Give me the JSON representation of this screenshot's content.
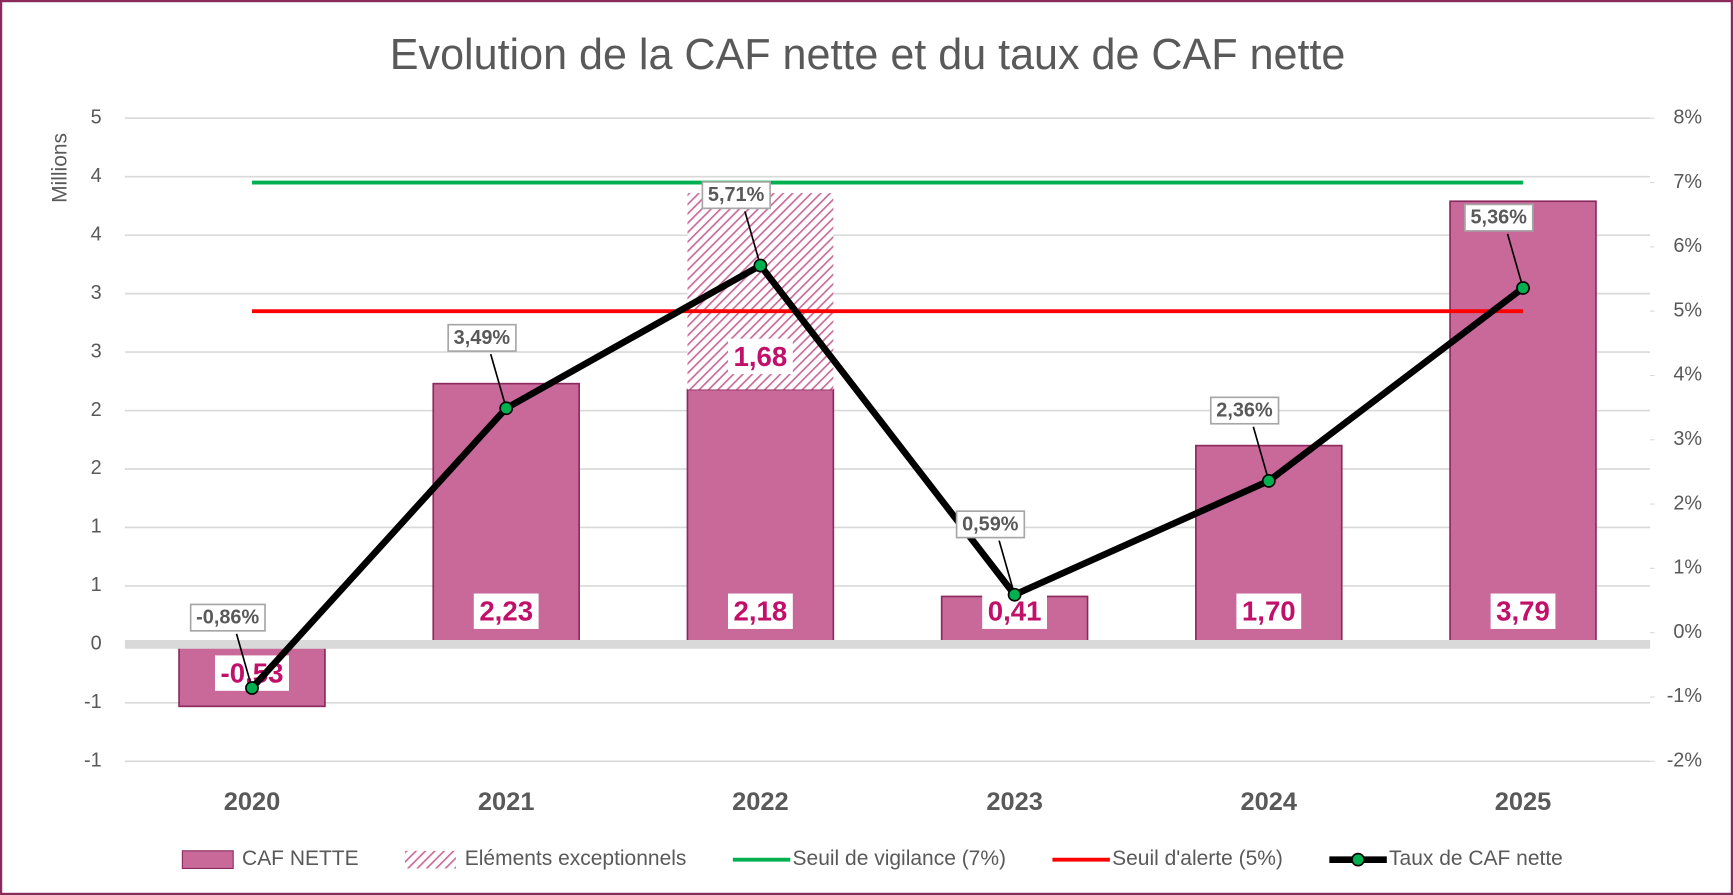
{
  "chart_data": {
    "type": "combo",
    "title": "Evolution de la CAF nette et du taux de CAF nette",
    "y_label": "Millions",
    "categories": [
      "2020",
      "2021",
      "2022",
      "2023",
      "2024",
      "2025"
    ],
    "ylim": [
      -1,
      4.5
    ],
    "yticks": [
      {
        "value": -1,
        "label": "-1"
      },
      {
        "value": -0.5,
        "label": "-1"
      },
      0,
      {
        "value": 0.5,
        "label": "1"
      },
      1,
      {
        "value": 1.5,
        "label": "2"
      },
      2,
      {
        "value": 2.5,
        "label": "3"
      },
      3,
      {
        "value": 3.5,
        "label": "4"
      },
      4,
      {
        "value": 4.5,
        "label": "5"
      }
    ],
    "y2lim": [
      -2,
      8
    ],
    "y2ticks": [
      {
        "value": -2,
        "label": "-2%"
      },
      {
        "value": -1,
        "label": "-1%"
      },
      {
        "value": 0,
        "label": "0%"
      },
      {
        "value": 1,
        "label": "1%"
      },
      {
        "value": 2,
        "label": "2%"
      },
      {
        "value": 3,
        "label": "3%"
      },
      {
        "value": 4,
        "label": "4%"
      },
      {
        "value": 5,
        "label": "5%"
      },
      {
        "value": 6,
        "label": "6%"
      },
      {
        "value": 7,
        "label": "7%"
      },
      {
        "value": 8,
        "label": "8%"
      }
    ],
    "grid": true,
    "legend": "bottom",
    "series": [
      {
        "name": "CAF NETTE",
        "type": "bar",
        "color": "#c9699a",
        "values": [
          -0.53,
          2.23,
          2.18,
          0.41,
          1.7,
          3.79
        ],
        "value_labels": [
          "-0,53",
          "2,23",
          "2,18",
          "0,41",
          "1,70",
          "3,79"
        ]
      },
      {
        "name": "Eléments exceptionnels",
        "type": "bar",
        "stacked": true,
        "pattern": "hatch",
        "color": "#c9699a",
        "values": [
          null,
          null,
          1.68,
          null,
          null,
          null
        ],
        "value_labels": [
          null,
          null,
          "1,68",
          null,
          null,
          null
        ]
      },
      {
        "name": "Seuil de vigilance (7%)",
        "type": "line",
        "axis": "y2",
        "color": "#00b050",
        "values": [
          7,
          7,
          7,
          7,
          7,
          7
        ]
      },
      {
        "name": "Seuil d'alerte (5%)",
        "type": "line",
        "axis": "y2",
        "color": "#ff0000",
        "values": [
          5,
          5,
          5,
          5,
          5,
          5
        ]
      },
      {
        "name": "Taux de CAF nette",
        "type": "line",
        "axis": "y2",
        "color": "#000000",
        "marker_color": "#00b050",
        "values": [
          -0.86,
          3.49,
          5.71,
          0.59,
          2.36,
          5.36
        ],
        "value_labels": [
          "-0,86%",
          "3,49%",
          "5,71%",
          "0,59%",
          "2,36%",
          "5,36%"
        ]
      }
    ]
  }
}
